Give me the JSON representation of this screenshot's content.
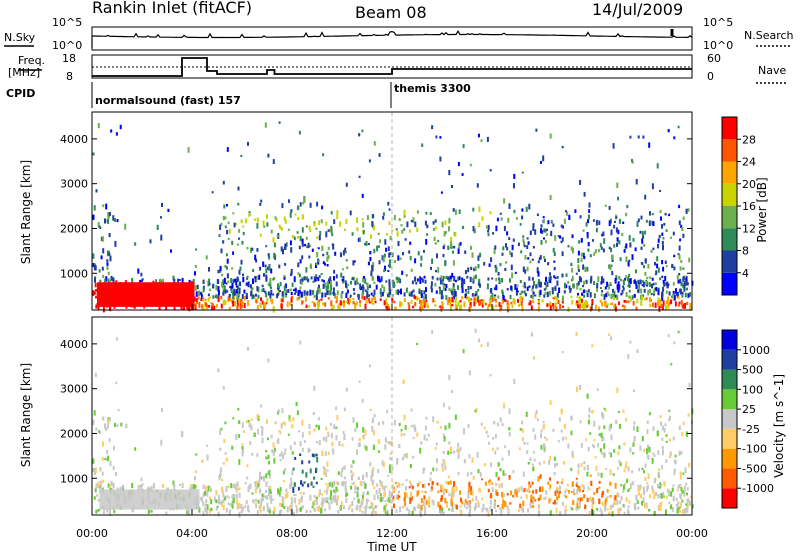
{
  "header": {
    "station": "Rankin Inlet (fitACF)",
    "beam": "Beam 08",
    "date": "14/Jul/2009"
  },
  "top_panels": {
    "nsky_label": "N.Sky",
    "nsky_ticks": [
      "10^5",
      "10^0"
    ],
    "nsearch_label": "N.Search",
    "nsearch_ticks": [
      "10^5",
      "10^0"
    ],
    "freq_label_1": "Freq.",
    "freq_label_2": "[MHz]",
    "freq_ticks": [
      "18",
      "8"
    ],
    "nave_label": "Nave",
    "nave_ticks": [
      "60",
      "0"
    ],
    "cpid_label": "CPID",
    "cpid_segments": [
      "normalsound (fast) 157",
      "themis 3300"
    ]
  },
  "colors": {
    "power_scale": [
      "#0000ff",
      "#1f3fa0",
      "#2e8b57",
      "#6ab04c",
      "#c8d400",
      "#ffa500",
      "#ff5500",
      "#ff0000"
    ],
    "velocity_scale": [
      "#ff0000",
      "#ff5a00",
      "#ff9900",
      "#ffcc66",
      "#c8c8c8",
      "#66cc33",
      "#2e8b57",
      "#1f3fa0",
      "#0000dd"
    ],
    "midline": "#b4b4b4"
  },
  "chart_data": [
    {
      "type": "heatmap",
      "name": "Power",
      "ylabel": "Slant Range [km]",
      "y_ticks": [
        "1000",
        "2000",
        "3000",
        "4000"
      ],
      "ylim": [
        180,
        4600
      ],
      "colorbar_label": "Power [dB]",
      "colorbar_ticks": [
        "4",
        "8",
        "12",
        "16",
        "20",
        "24",
        "28"
      ],
      "colorbar_range": [
        0,
        30
      ],
      "features": [
        {
          "region": "00:00-04:00",
          "range_km": [
            250,
            800
          ],
          "value_db": 29
        },
        {
          "region": "08:00-12:00",
          "range_km": [
            1800,
            2500
          ],
          "value_db": 14
        },
        {
          "region": "12:00-24:00",
          "range_km": [
            300,
            2200
          ],
          "value_db": 12
        }
      ]
    },
    {
      "type": "heatmap",
      "name": "Velocity",
      "ylabel": "Slant Range [km]",
      "y_ticks": [
        "1000",
        "2000",
        "3000",
        "4000"
      ],
      "ylim": [
        180,
        4600
      ],
      "colorbar_label": "Velocity [m s^-1]",
      "colorbar_ticks": [
        "1000",
        "500",
        "100",
        "25",
        "-25",
        "-100",
        "-500",
        "-1000"
      ],
      "colorbar_range": [
        -1000,
        1000
      ],
      "features": [
        {
          "region": "00:00-04:00",
          "range_km": [
            250,
            800
          ],
          "value_ms": 0
        },
        {
          "region": "12:00-20:00",
          "range_km": [
            500,
            1000
          ],
          "value_ms": -300
        },
        {
          "region": "08:00-09:00",
          "range_km": [
            900,
            1500
          ],
          "value_ms": 400
        }
      ]
    }
  ],
  "time_axis": {
    "ticks": [
      "00:00",
      "04:00",
      "08:00",
      "12:00",
      "16:00",
      "20:00",
      "00:00"
    ],
    "label": "Time UT"
  }
}
